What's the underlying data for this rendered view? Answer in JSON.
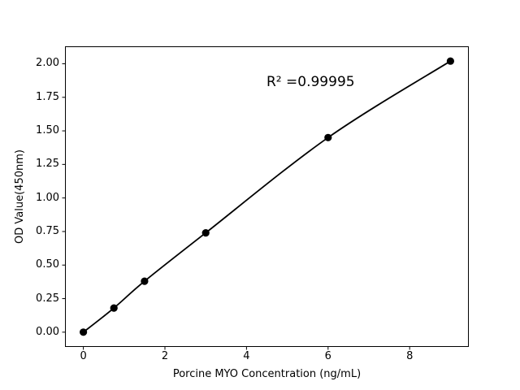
{
  "figure": {
    "background_color": "#ffffff",
    "text_color": "#000000"
  },
  "chart_data": {
    "type": "scatter",
    "series": [
      {
        "name": "standard-curve",
        "x": [
          0,
          0.75,
          1.5,
          3,
          6,
          9
        ],
        "y": [
          0.0,
          0.18,
          0.38,
          0.74,
          1.45,
          2.02
        ],
        "marker": "filled-circle",
        "marker_color": "#000000",
        "line": "smooth fitted curve through points",
        "line_color": "#000000"
      }
    ],
    "r_squared": 0.99995,
    "annotation": {
      "text": "R² =0.99995",
      "x": 4.5,
      "y": 1.85
    },
    "title": "",
    "xlabel": "Porcine MYO Concentration (ng/mL)",
    "ylabel": "OD Value(450nm)",
    "xlim": [
      -0.45,
      9.45
    ],
    "ylim": [
      -0.11,
      2.13
    ],
    "xticks": {
      "values": [
        0,
        2,
        4,
        6,
        8
      ],
      "labels": [
        "0",
        "2",
        "4",
        "6",
        "8"
      ]
    },
    "yticks": {
      "values": [
        0,
        0.25,
        0.5,
        0.75,
        1,
        1.25,
        1.5,
        1.75,
        2
      ],
      "labels": [
        "0.00",
        "0.25",
        "0.50",
        "0.75",
        "1.00",
        "1.25",
        "1.50",
        "1.75",
        "2.00"
      ]
    },
    "grid": false,
    "legend": "none"
  }
}
